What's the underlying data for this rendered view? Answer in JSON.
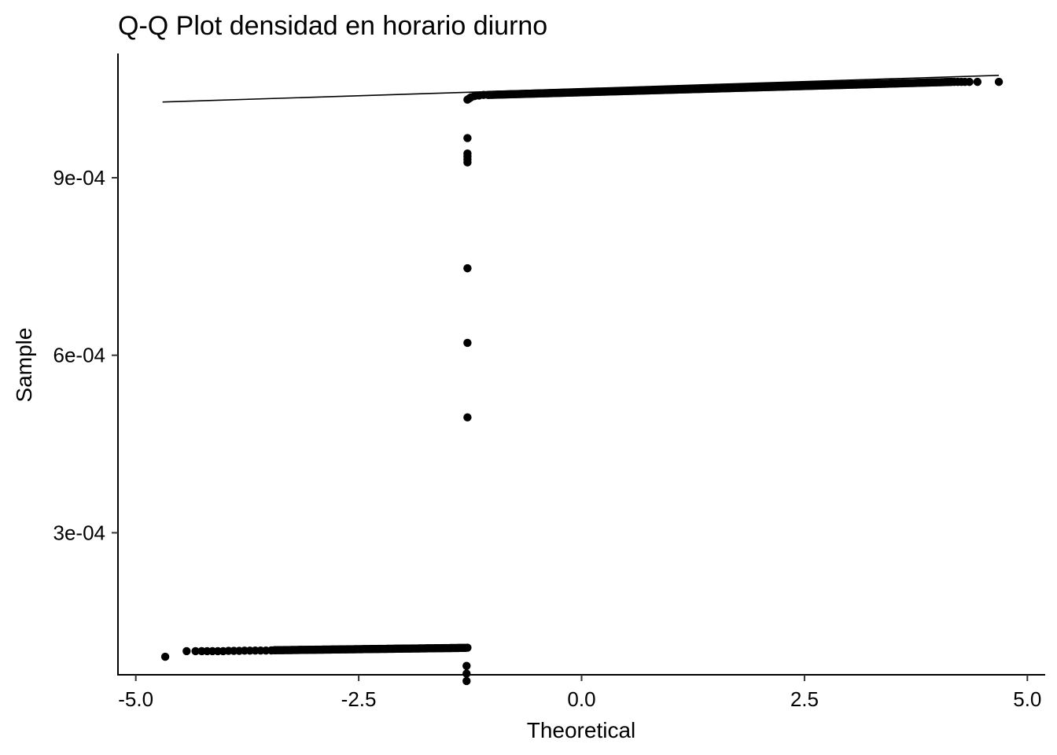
{
  "chart_data": {
    "type": "scatter",
    "title": "Q-Q Plot densidad en horario diurno",
    "xlabel": "Theoretical",
    "ylabel": "Sample",
    "xlim": [
      -5.2,
      5.2
    ],
    "ylim": [
      6e-05,
      0.00111
    ],
    "x_ticks": [
      {
        "value": -5.0,
        "label": "-5.0"
      },
      {
        "value": -2.5,
        "label": "-2.5"
      },
      {
        "value": 0.0,
        "label": "0.0"
      },
      {
        "value": 2.5,
        "label": "2.5"
      },
      {
        "value": 5.0,
        "label": "5.0"
      }
    ],
    "y_ticks": [
      {
        "value": 0.0003,
        "label": "3e-04"
      },
      {
        "value": 0.0006,
        "label": "6e-04"
      },
      {
        "value": 0.0009,
        "label": "9e-04"
      }
    ],
    "grid": false,
    "legend": "none",
    "reference_line": {
      "x": [
        -4.7,
        4.68
      ],
      "y": [
        0.001028,
        0.001073
      ]
    },
    "low_cluster": {
      "x_start": -3.45,
      "x_end": -1.3,
      "y_start": 0.0001015,
      "y_end": 0.0001055
    },
    "high_cluster": {
      "x_start": -1.05,
      "x_end": 4.15,
      "y_start": 0.00104,
      "y_end": 0.001062
    },
    "points": [
      {
        "x": -4.67,
        "y": 9.05e-05
      },
      {
        "x": -4.43,
        "y": 0.0001
      },
      {
        "x": -4.33,
        "y": 0.0001
      },
      {
        "x": -4.26,
        "y": 0.0001
      },
      {
        "x": -4.2,
        "y": 0.0001
      },
      {
        "x": -4.14,
        "y": 0.0001
      },
      {
        "x": -4.08,
        "y": 0.0001
      },
      {
        "x": -4.02,
        "y": 0.0001
      },
      {
        "x": -3.96,
        "y": 0.0001005
      },
      {
        "x": -3.9,
        "y": 0.0001005
      },
      {
        "x": -3.84,
        "y": 0.0001005
      },
      {
        "x": -3.78,
        "y": 0.0001008
      },
      {
        "x": -3.72,
        "y": 0.0001008
      },
      {
        "x": -3.66,
        "y": 0.000101
      },
      {
        "x": -3.6,
        "y": 0.000101
      },
      {
        "x": -3.54,
        "y": 0.000101
      },
      {
        "x": -3.48,
        "y": 0.0001012
      },
      {
        "x": -1.28,
        "y": 0.0001058
      },
      {
        "x": -1.29,
        "y": 4.95e-05
      },
      {
        "x": -1.29,
        "y": 6.2e-05
      },
      {
        "x": -1.29,
        "y": 7.5e-05
      },
      {
        "x": -1.28,
        "y": 0.000495
      },
      {
        "x": -1.28,
        "y": 0.000621
      },
      {
        "x": -1.28,
        "y": 0.000747
      },
      {
        "x": -1.28,
        "y": 0.000926
      },
      {
        "x": -1.28,
        "y": 0.000931
      },
      {
        "x": -1.28,
        "y": 0.000936
      },
      {
        "x": -1.28,
        "y": 0.000941
      },
      {
        "x": -1.28,
        "y": 0.000967
      },
      {
        "x": -1.28,
        "y": 0.001032
      },
      {
        "x": -1.26,
        "y": 0.001034
      },
      {
        "x": -1.24,
        "y": 0.001036
      },
      {
        "x": -1.2,
        "y": 0.001038
      },
      {
        "x": -1.15,
        "y": 0.001039
      },
      {
        "x": -1.1,
        "y": 0.00104
      },
      {
        "x": 4.18,
        "y": 0.001062
      },
      {
        "x": 4.22,
        "y": 0.001062
      },
      {
        "x": 4.26,
        "y": 0.001062
      },
      {
        "x": 4.3,
        "y": 0.001062
      },
      {
        "x": 4.35,
        "y": 0.001062
      },
      {
        "x": 4.44,
        "y": 0.001062
      },
      {
        "x": 4.68,
        "y": 0.001062
      }
    ]
  }
}
